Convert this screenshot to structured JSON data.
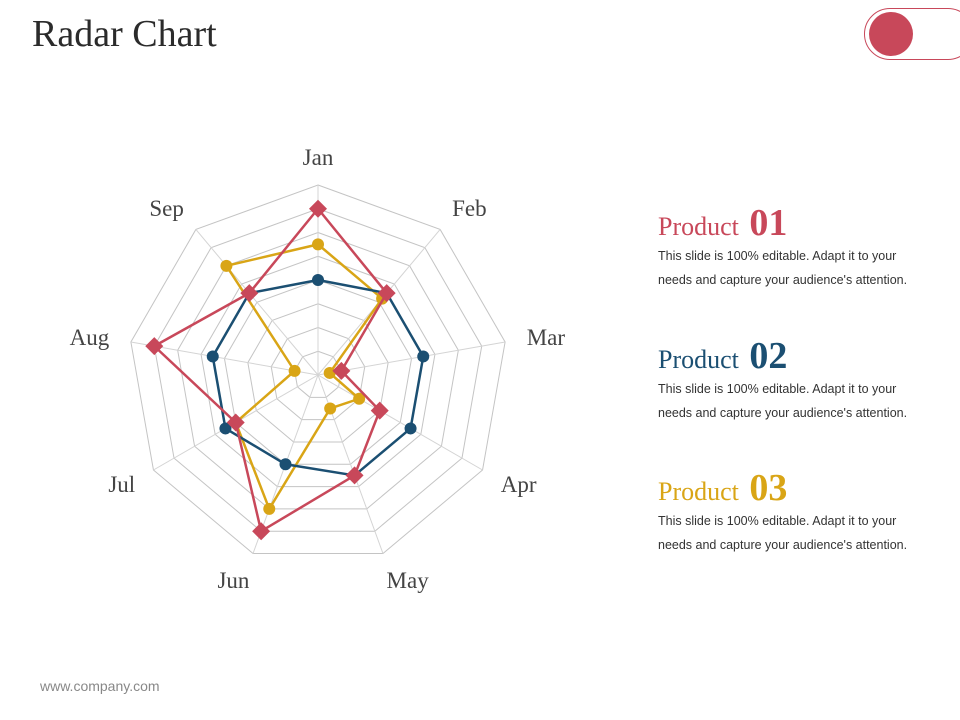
{
  "title": "Radar Chart",
  "footer": "www.company.com",
  "legend": [
    {
      "label": "Product",
      "number": "01",
      "color": "#c8485a",
      "text": "This slide is 100% editable. Adapt it to your needs and capture your audience's attention."
    },
    {
      "label": "Product",
      "number": "02",
      "color": "#1b4f72",
      "text": "This slide is 100% editable. Adapt it to your needs and capture your audience's attention."
    },
    {
      "label": "Product",
      "number": "03",
      "color": "#d9a516",
      "text": "This slide is 100% editable. Adapt it to your needs and capture your audience's attention."
    }
  ],
  "chart_data": {
    "type": "radar",
    "title": "",
    "categories": [
      "Jan",
      "Feb",
      "Mar",
      "Apr",
      "May",
      "Jun",
      "Jul",
      "Aug",
      "Sep"
    ],
    "rmax": 8,
    "rings": 8,
    "series": [
      {
        "name": "Product 01",
        "color": "#c8485a",
        "marker": "diamond",
        "values": [
          7,
          4.5,
          1,
          3,
          4.5,
          7,
          4,
          7,
          4.5
        ]
      },
      {
        "name": "Product 02",
        "color": "#1b4f72",
        "marker": "circle",
        "values": [
          4,
          4.5,
          4.5,
          4.5,
          4.5,
          4,
          4.5,
          4.5,
          4.5
        ]
      },
      {
        "name": "Product 03",
        "color": "#d9a516",
        "marker": "circle",
        "values": [
          5.5,
          4.2,
          0.5,
          2,
          1.5,
          6,
          4,
          1,
          6
        ]
      }
    ]
  }
}
